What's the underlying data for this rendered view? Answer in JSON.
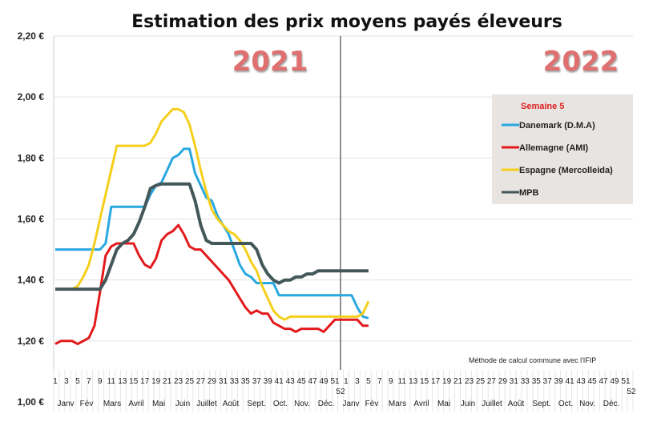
{
  "chart_data": {
    "type": "line",
    "title": "Estimation des prix moyens payés éleveurs",
    "year_labels": [
      "2021",
      "2022"
    ],
    "note": "Méthode de calcul commune avec l'IFIP",
    "ylim": [
      1.0,
      2.2
    ],
    "y_ticks": [
      "1,00 €",
      "1,20 €",
      "1,40 €",
      "1,60 €",
      "1,80 €",
      "2,00 €",
      "2,20 €"
    ],
    "week_ticks": [
      "1",
      "3",
      "5",
      "7",
      "9",
      "11",
      "13",
      "15",
      "17",
      "19",
      "21",
      "23",
      "25",
      "27",
      "29",
      "31",
      "33",
      "35",
      "37",
      "39",
      "41",
      "43",
      "45",
      "47",
      "49",
      "51",
      "52"
    ],
    "months": [
      "Janv",
      "Fév",
      "Mars",
      "Avril",
      "Mai",
      "Juin",
      "Juillet",
      "Août",
      "Sept.",
      "Oct.",
      "Nov.",
      "Déc."
    ],
    "grid": true,
    "legend": {
      "title": "Semaine 5",
      "placement": "right",
      "background": "#e8e4e2"
    },
    "x_description": "weeks 1-52 of 2021 followed by weeks 1-5 of 2022",
    "series": [
      {
        "name": "Danemark (D.M.A)",
        "color": "#29a8e0",
        "values": [
          1.5,
          1.5,
          1.5,
          1.5,
          1.5,
          1.5,
          1.5,
          1.5,
          1.5,
          1.52,
          1.64,
          1.64,
          1.64,
          1.64,
          1.64,
          1.64,
          1.64,
          1.68,
          1.71,
          1.72,
          1.76,
          1.8,
          1.81,
          1.83,
          1.83,
          1.75,
          1.71,
          1.67,
          1.66,
          1.61,
          1.58,
          1.55,
          1.5,
          1.45,
          1.42,
          1.41,
          1.39,
          1.39,
          1.39,
          1.39,
          1.35,
          1.35,
          1.35,
          1.35,
          1.35,
          1.35,
          1.35,
          1.35,
          1.35,
          1.35,
          1.35,
          1.35,
          1.35,
          1.35,
          1.31,
          1.28,
          1.275
        ]
      },
      {
        "name": "Allemagne (AMI)",
        "color": "#e31a1c",
        "values": [
          1.19,
          1.2,
          1.2,
          1.2,
          1.19,
          1.2,
          1.21,
          1.25,
          1.36,
          1.48,
          1.51,
          1.52,
          1.52,
          1.52,
          1.52,
          1.48,
          1.45,
          1.44,
          1.47,
          1.53,
          1.55,
          1.56,
          1.58,
          1.55,
          1.51,
          1.5,
          1.5,
          1.48,
          1.46,
          1.44,
          1.42,
          1.4,
          1.37,
          1.34,
          1.31,
          1.29,
          1.3,
          1.29,
          1.29,
          1.26,
          1.25,
          1.24,
          1.24,
          1.23,
          1.24,
          1.24,
          1.24,
          1.24,
          1.23,
          1.25,
          1.27,
          1.27,
          1.27,
          1.27,
          1.27,
          1.25,
          1.25
        ]
      },
      {
        "name": "Espagne (Mercolleida)",
        "color": "#f5cf1c",
        "values": [
          1.37,
          1.37,
          1.37,
          1.37,
          1.38,
          1.41,
          1.45,
          1.52,
          1.6,
          1.68,
          1.76,
          1.84,
          1.84,
          1.84,
          1.84,
          1.84,
          1.84,
          1.85,
          1.88,
          1.92,
          1.94,
          1.96,
          1.96,
          1.95,
          1.91,
          1.84,
          1.76,
          1.69,
          1.63,
          1.6,
          1.58,
          1.56,
          1.55,
          1.53,
          1.5,
          1.46,
          1.43,
          1.38,
          1.34,
          1.3,
          1.28,
          1.27,
          1.28,
          1.28,
          1.28,
          1.28,
          1.28,
          1.28,
          1.28,
          1.28,
          1.28,
          1.28,
          1.28,
          1.28,
          1.28,
          1.29,
          1.33
        ]
      },
      {
        "name": "MPB",
        "color": "#44585a",
        "values": [
          1.37,
          1.37,
          1.37,
          1.37,
          1.37,
          1.37,
          1.37,
          1.37,
          1.37,
          1.4,
          1.45,
          1.5,
          1.52,
          1.53,
          1.55,
          1.59,
          1.64,
          1.7,
          1.71,
          1.715,
          1.715,
          1.715,
          1.715,
          1.715,
          1.715,
          1.66,
          1.58,
          1.53,
          1.52,
          1.52,
          1.52,
          1.52,
          1.52,
          1.52,
          1.52,
          1.52,
          1.5,
          1.45,
          1.42,
          1.4,
          1.39,
          1.4,
          1.4,
          1.41,
          1.41,
          1.42,
          1.42,
          1.43,
          1.43,
          1.43,
          1.43,
          1.43,
          1.43,
          1.43,
          1.43,
          1.43,
          1.43
        ]
      }
    ]
  }
}
